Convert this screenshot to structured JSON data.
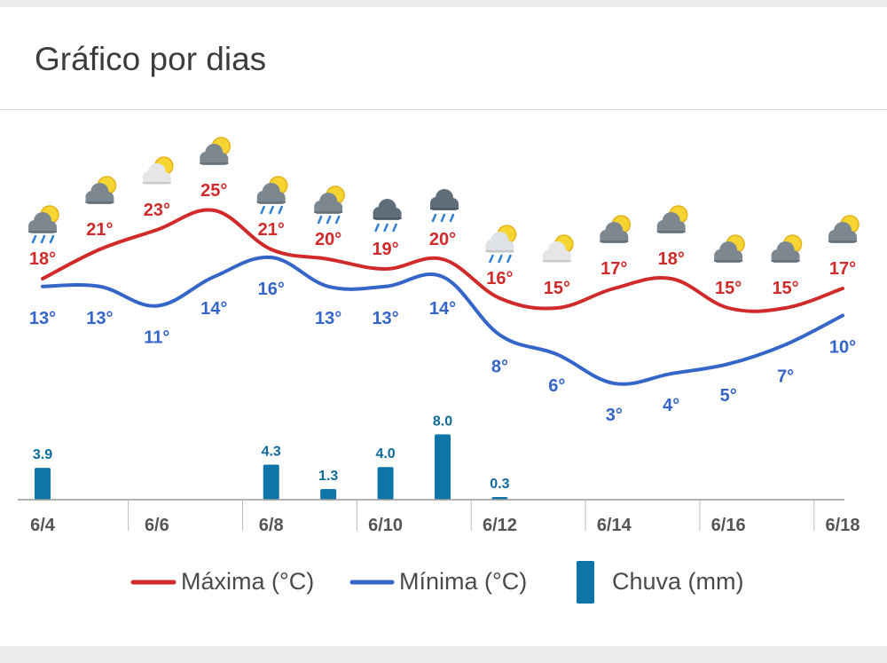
{
  "header": {
    "title": "Gráfico por dias"
  },
  "legend": {
    "max_label": "Máxima (°C)",
    "min_label": "Mínima (°C)",
    "rain_label": "Chuva (mm)"
  },
  "colors": {
    "max": "#d02a2a",
    "min": "#3465c9",
    "rain": "#0d75a8",
    "axis": "#9a9a9a"
  },
  "chart_data": {
    "type": "line",
    "categories": [
      "6/4",
      "6/5",
      "6/6",
      "6/7",
      "6/8",
      "6/9",
      "6/10",
      "6/11",
      "6/12",
      "6/13",
      "6/14",
      "6/15",
      "6/16",
      "6/17",
      "6/18"
    ],
    "x_tick_labels": [
      "6/4",
      "6/6",
      "6/8",
      "6/10",
      "6/12",
      "6/14",
      "6/16",
      "6/18"
    ],
    "series": [
      {
        "name": "Máxima (°C)",
        "values": [
          18,
          21,
          23,
          25,
          21,
          20,
          19,
          20,
          16,
          15,
          17,
          18,
          15,
          15,
          17
        ],
        "labels": [
          "18°",
          "21°",
          "23°",
          "25°",
          "21°",
          "20°",
          "19°",
          "20°",
          "16°",
          "15°",
          "17°",
          "18°",
          "15°",
          "15°",
          "17°"
        ]
      },
      {
        "name": "Mínima (°C)",
        "values": [
          13,
          13,
          11,
          14,
          16,
          13,
          13,
          14,
          8,
          6,
          3,
          4,
          5,
          7,
          10
        ],
        "labels": [
          "13°",
          "13°",
          "11°",
          "14°",
          "16°",
          "13°",
          "13°",
          "14°",
          "8°",
          "6°",
          "3°",
          "4°",
          "5°",
          "7°",
          "10°"
        ]
      },
      {
        "name": "Chuva (mm)",
        "type": "bar",
        "values": [
          3.9,
          0,
          0,
          0,
          4.3,
          1.3,
          4.0,
          8.0,
          0.3,
          0,
          0,
          0,
          0,
          0,
          0
        ],
        "labels": [
          "3.9",
          "",
          "",
          "",
          "4.3",
          "1.3",
          "4.0",
          "8.0",
          "0.3",
          "",
          "",
          "",
          "",
          "",
          ""
        ]
      }
    ],
    "icons": [
      "rain-partly-cloudy-icon",
      "partly-cloudy-icon",
      "mostly-sunny-icon",
      "partly-cloudy-icon",
      "rain-partly-cloudy-icon",
      "rain-partly-cloudy-icon",
      "rain-cloud-icon",
      "rain-cloud-icon",
      "light-rain-sunny-icon",
      "mostly-sunny-icon",
      "partly-cloudy-icon",
      "partly-cloudy-icon",
      "partly-cloudy-icon",
      "partly-cloudy-icon",
      "partly-cloudy-icon"
    ]
  }
}
